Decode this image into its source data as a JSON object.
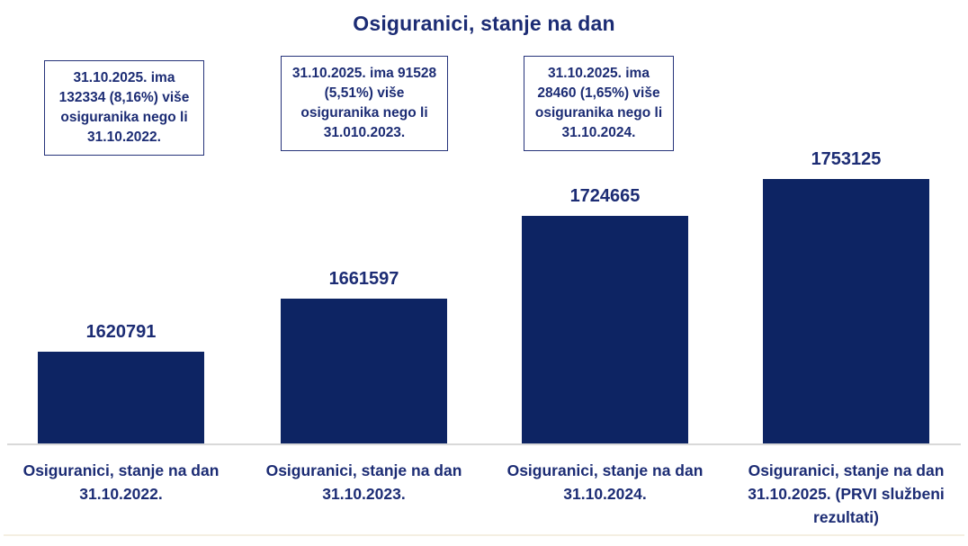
{
  "chart_data": {
    "type": "bar",
    "title": "Osiguranici, stanje na dan",
    "categories": [
      "Osiguranici, stanje na dan 31.10.2022.",
      "Osiguranici, stanje na dan 31.10.2023.",
      "Osiguranici, stanje na dan 31.10.2024.",
      "Osiguranici, stanje na dan 31.10.2025. (PRVI službeni rezultati)"
    ],
    "values": [
      1620791,
      1661597,
      1724665,
      1753125
    ],
    "data_labels": [
      "1620791",
      "1661597",
      "1724665",
      "1753125"
    ],
    "ylim": [
      1550000,
      1790000
    ],
    "xlabel": "",
    "ylabel": "",
    "grid": false,
    "legend": false,
    "annotations": [
      {
        "text": "31.10.2025. ima 132334 (8,16%) više osiguranika nego li 31.10.2022."
      },
      {
        "text": "31.10.2025. ima 91528 (5,51%) više osiguranika nego li 31.010.2023."
      },
      {
        "text": "31.10.2025. ima 28460 (1,65%) više osiguranika nego li 31.10.2024."
      }
    ],
    "colors": {
      "bar_fill": "#0d2463",
      "text_navy": "#1c2c74",
      "box_border": "#26337a",
      "axis_line": "#d9d9d9"
    }
  }
}
